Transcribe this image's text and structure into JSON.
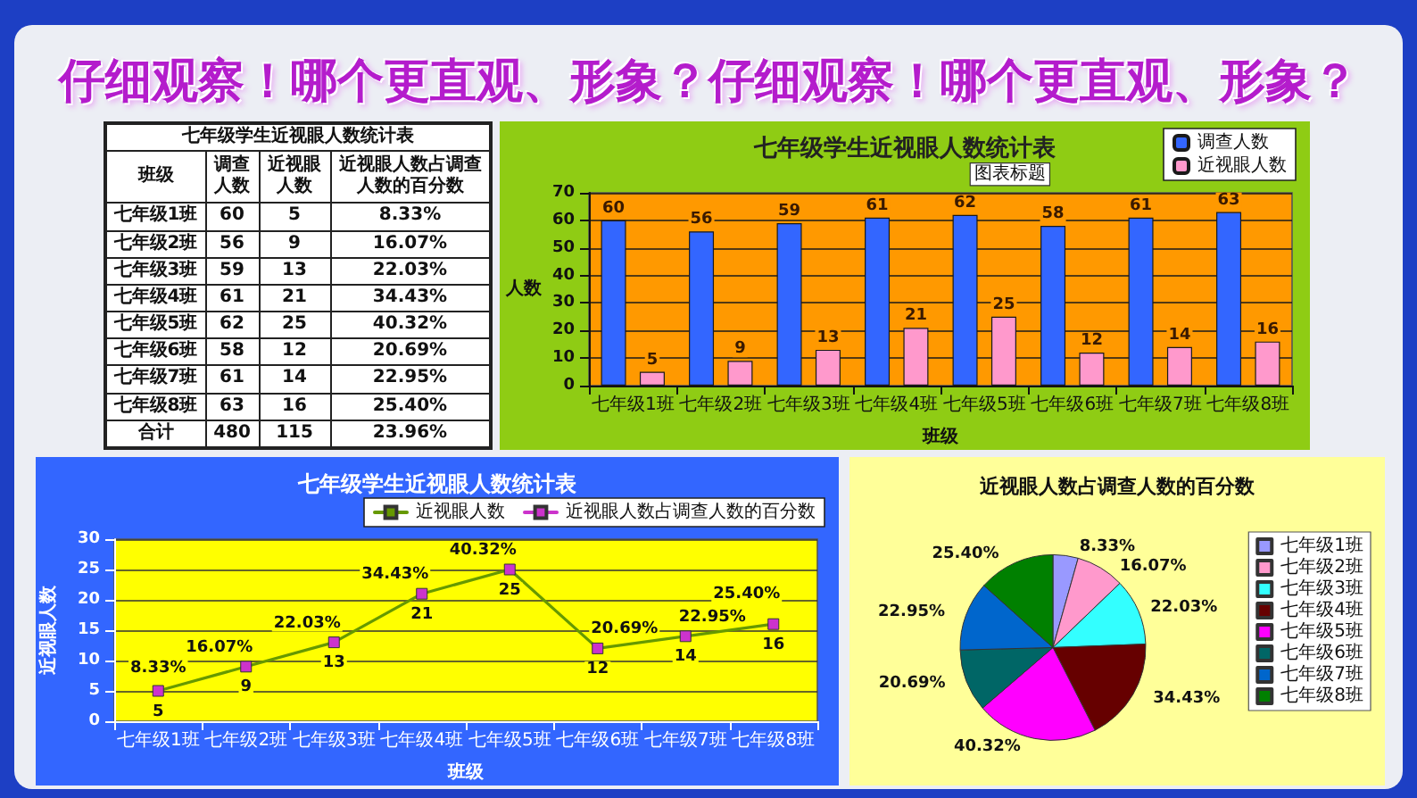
{
  "chart_data": [
    {
      "type": "other",
      "title": "七年级学生近视眼人数统计表",
      "xlabel": "班级",
      "annotations": [
        "仔细观察！哪个更直观、形象？仔细观察！哪个更直观、形象？"
      ],
      "categories": [
        "七年级1班",
        "七年级2班",
        "七年级3班",
        "七年级4班",
        "七年级5班",
        "七年级6班",
        "七年级7班",
        "七年级8班",
        "合计"
      ],
      "series": [
        {
          "name": "调查人数",
          "values": [
            60,
            56,
            59,
            61,
            62,
            58,
            61,
            63,
            480
          ]
        },
        {
          "name": "近视眼人数",
          "values": [
            5,
            9,
            13,
            21,
            25,
            12,
            14,
            16,
            115
          ]
        },
        {
          "name": "近视眼人数占调查人数的百分数",
          "values": [
            8.33,
            16.07,
            22.03,
            34.43,
            40.32,
            20.69,
            22.95,
            25.4,
            23.96
          ],
          "value_labels": [
            "8.33%",
            "16.07%",
            "22.03%",
            "34.43%",
            "40.32%",
            "20.69%",
            "22.95%",
            "25.40%",
            "23.96%"
          ]
        }
      ],
      "data_labels": true
    },
    {
      "type": "bar",
      "title": "七年级学生近视眼人数统计表",
      "xlabel": "班级",
      "ylabel": "人数",
      "annotations": [
        "图表标题"
      ],
      "categories": [
        "七年级1班",
        "七年级2班",
        "七年级3班",
        "七年级4班",
        "七年级5班",
        "七年级6班",
        "七年级7班",
        "七年级8班"
      ],
      "series": [
        {
          "name": "调查人数",
          "color": "#3366ff",
          "values": [
            60,
            56,
            59,
            61,
            62,
            58,
            61,
            63
          ]
        },
        {
          "name": "近视眼人数",
          "color": "#ff99cc",
          "values": [
            5,
            9,
            13,
            21,
            25,
            12,
            14,
            16
          ]
        }
      ],
      "ylim": [
        0,
        70
      ],
      "yticks": [
        0,
        10,
        20,
        30,
        40,
        50,
        60,
        70
      ],
      "grid": "y",
      "legend": "top right",
      "data_labels": true
    },
    {
      "type": "line",
      "title": "七年级学生近视眼人数统计表",
      "xlabel": "班级",
      "ylabel": "近视眼人数",
      "categories": [
        "七年级1班",
        "七年级2班",
        "七年级3班",
        "七年级4班",
        "七年级5班",
        "七年级6班",
        "七年级7班",
        "七年级8班"
      ],
      "series": [
        {
          "name": "近视眼人数",
          "color": "#669900",
          "colors": [
            "#cc33cc",
            "#cc33cc",
            "#cc33cc",
            "#cc33cc",
            "#cc33cc",
            "#cc33cc",
            "#cc33cc",
            "#cc33cc"
          ],
          "values": [
            5,
            9,
            13,
            21,
            25,
            12,
            14,
            16
          ],
          "value_labels": [
            "5",
            "9",
            "13",
            "21",
            "25",
            "12",
            "14",
            "16"
          ]
        },
        {
          "name": "近视眼人数占调查人数的百分数",
          "color": "#cc33cc",
          "values": [
            null,
            null,
            null,
            null,
            null,
            null,
            null,
            null
          ]
        }
      ],
      "annotations": [
        {
          "text": "8.33%",
          "x": "七年级1班",
          "y": 5
        },
        {
          "text": "16.07%",
          "x": "七年级2班",
          "y": 9
        },
        {
          "text": "22.03%",
          "x": "七年级3班",
          "y": 13
        },
        {
          "text": "34.43%",
          "x": "七年级4班",
          "y": 21
        },
        {
          "text": "40.32%",
          "x": "七年级5班",
          "y": 25
        },
        {
          "text": "20.69%",
          "x": "七年级6班",
          "y": 12
        },
        {
          "text": "22.95%",
          "x": "七年级7班",
          "y": 14
        },
        {
          "text": "25.40%",
          "x": "七年级8班",
          "y": 16
        }
      ],
      "ylim": [
        0,
        30
      ],
      "yticks": [
        0,
        5,
        10,
        15,
        20,
        25,
        30
      ],
      "grid": "y",
      "legend": "top right",
      "marker": "square"
    },
    {
      "type": "pie",
      "title": "近视眼人数占调查人数的百分数",
      "categories": [
        "七年级1班",
        "七年级2班",
        "七年级3班",
        "七年级4班",
        "七年级5班",
        "七年级6班",
        "七年级7班",
        "七年级8班"
      ],
      "values": [
        8.33,
        16.07,
        22.03,
        34.43,
        40.32,
        20.69,
        22.95,
        25.4
      ],
      "value_labels": [
        "8.33%",
        "16.07%",
        "22.03%",
        "34.43%",
        "40.32%",
        "20.69%",
        "22.95%",
        "25.40%"
      ],
      "colors": [
        "#9999ff",
        "#ff99cc",
        "#33ffff",
        "#660000",
        "#ff00ff",
        "#006666",
        "#0066cc",
        "#008000"
      ],
      "legend": "right"
    }
  ]
}
